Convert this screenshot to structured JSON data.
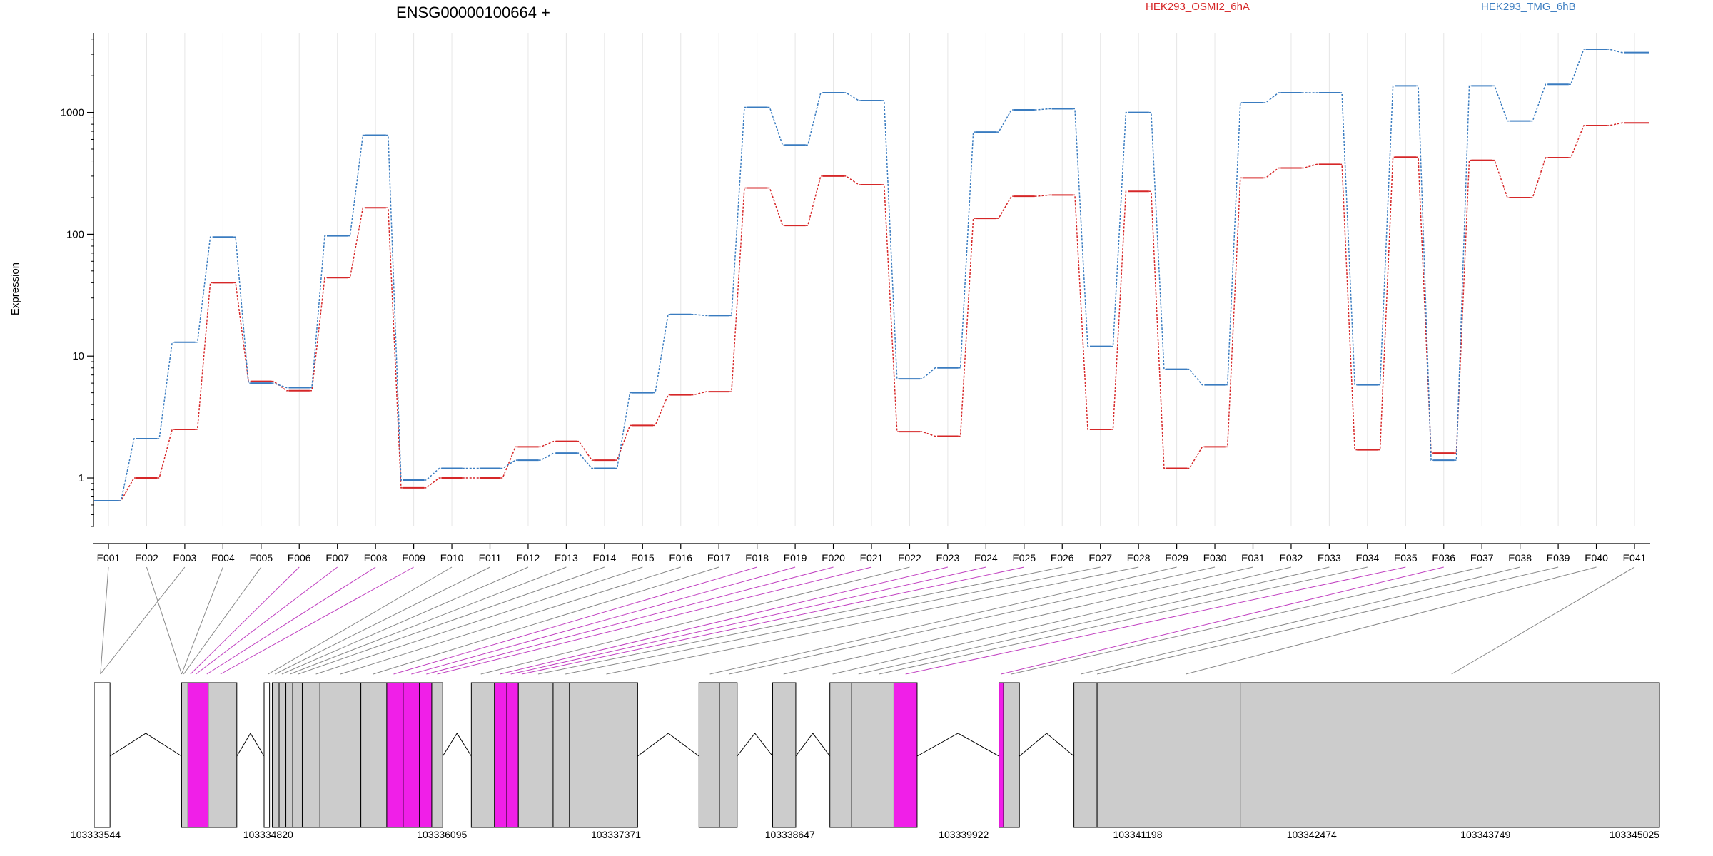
{
  "chart_data": {
    "type": "line",
    "title": "ENSG00000100664 +",
    "ylabel": "Expression",
    "yscale": "log",
    "ylim": [
      0.4,
      4500
    ],
    "yticks": [
      1,
      10,
      100,
      1000
    ],
    "ytick_labels": [
      "1",
      "10",
      "100",
      "1000"
    ],
    "grid": "vertical",
    "legend_position": "top-right",
    "colors": {
      "osmi": "#d62728",
      "tmg": "#3a7cc0",
      "highlight": "#f01fe8",
      "exon": "#cccccc"
    },
    "categories": [
      "E001",
      "E002",
      "E003",
      "E004",
      "E005",
      "E006",
      "E007",
      "E008",
      "E009",
      "E010",
      "E011",
      "E012",
      "E013",
      "E014",
      "E015",
      "E016",
      "E017",
      "E018",
      "E019",
      "E020",
      "E021",
      "E022",
      "E023",
      "E024",
      "E025",
      "E026",
      "E027",
      "E028",
      "E029",
      "E030",
      "E031",
      "E032",
      "E033",
      "E034",
      "E035",
      "E036",
      "E037",
      "E038",
      "E039",
      "E040",
      "E041"
    ],
    "series": [
      {
        "name": "HEK293_OSMI2_6hA",
        "color": "#d62728",
        "values": [
          0.65,
          1.0,
          2.5,
          40,
          6.2,
          5.2,
          44,
          165,
          0.83,
          1.0,
          1.0,
          1.8,
          2.0,
          1.4,
          2.7,
          4.8,
          5.1,
          240,
          118,
          300,
          255,
          2.4,
          2.2,
          135,
          205,
          210,
          2.5,
          225,
          1.2,
          1.8,
          290,
          350,
          375,
          1.7,
          430,
          1.6,
          405,
          200,
          425,
          780,
          820
        ]
      },
      {
        "name": "HEK293_TMG_6hB",
        "color": "#3a7cc0",
        "values": [
          0.65,
          2.1,
          13,
          95,
          6.0,
          5.5,
          97,
          650,
          0.96,
          1.2,
          1.2,
          1.4,
          1.6,
          1.2,
          5.0,
          22,
          21.5,
          1100,
          540,
          1450,
          1250,
          6.5,
          8.0,
          690,
          1050,
          1070,
          12,
          1000,
          7.8,
          5.8,
          1200,
          1450,
          1450,
          5.8,
          1650,
          1.4,
          1650,
          850,
          1700,
          3300,
          3100
        ]
      }
    ],
    "gene_track": {
      "coordinate_labels": [
        "103333544",
        "103334820",
        "103336095",
        "103337371",
        "103338647",
        "103339922",
        "103341198",
        "103342474",
        "103343749",
        "103345025"
      ],
      "exons": [
        {
          "start": 103333544,
          "end": 103333660,
          "highlight": false,
          "white": true
        },
        {
          "start": 103334185,
          "end": 103334232,
          "highlight": false
        },
        {
          "start": 103334232,
          "end": 103334380,
          "highlight": true
        },
        {
          "start": 103334380,
          "end": 103334590,
          "highlight": false
        },
        {
          "start": 103334790,
          "end": 103334830,
          "highlight": false,
          "white": true
        },
        {
          "start": 103334850,
          "end": 103334900,
          "highlight": false
        },
        {
          "start": 103334900,
          "end": 103334950,
          "highlight": false
        },
        {
          "start": 103334950,
          "end": 103335000,
          "highlight": false
        },
        {
          "start": 103335000,
          "end": 103335070,
          "highlight": false
        },
        {
          "start": 103335070,
          "end": 103335200,
          "highlight": false
        },
        {
          "start": 103335200,
          "end": 103335500,
          "highlight": false
        },
        {
          "start": 103335500,
          "end": 103335690,
          "highlight": false
        },
        {
          "start": 103335690,
          "end": 103335810,
          "highlight": true
        },
        {
          "start": 103335810,
          "end": 103335930,
          "highlight": true
        },
        {
          "start": 103335930,
          "end": 103336020,
          "highlight": true
        },
        {
          "start": 103336020,
          "end": 103336100,
          "highlight": false
        },
        {
          "start": 103336310,
          "end": 103336480,
          "highlight": false
        },
        {
          "start": 103336480,
          "end": 103336570,
          "highlight": true
        },
        {
          "start": 103336570,
          "end": 103336655,
          "highlight": true
        },
        {
          "start": 103336655,
          "end": 103336910,
          "highlight": false
        },
        {
          "start": 103336910,
          "end": 103337030,
          "highlight": false
        },
        {
          "start": 103337030,
          "end": 103337530,
          "highlight": false
        },
        {
          "start": 103337980,
          "end": 103338130,
          "highlight": false
        },
        {
          "start": 103338130,
          "end": 103338260,
          "highlight": false
        },
        {
          "start": 103338520,
          "end": 103338690,
          "highlight": false
        },
        {
          "start": 103338940,
          "end": 103339100,
          "highlight": false
        },
        {
          "start": 103339100,
          "end": 103339410,
          "highlight": false
        },
        {
          "start": 103339410,
          "end": 103339580,
          "highlight": true
        },
        {
          "start": 103340180,
          "end": 103340215,
          "highlight": true
        },
        {
          "start": 103340215,
          "end": 103340330,
          "highlight": false
        },
        {
          "start": 103340730,
          "end": 103340900,
          "highlight": false
        },
        {
          "start": 103340900,
          "end": 103341950,
          "highlight": false
        },
        {
          "start": 103341950,
          "end": 103345025,
          "highlight": false
        }
      ],
      "connector_pairs": [
        [
          103333590,
          false
        ],
        [
          103334185,
          false
        ],
        [
          103334200,
          false
        ],
        [
          103334250,
          true
        ],
        [
          103334290,
          true
        ],
        [
          103334370,
          true
        ],
        [
          103334470,
          true
        ],
        [
          103334820,
          false
        ],
        [
          103334870,
          false
        ],
        [
          103334920,
          false
        ],
        [
          103334980,
          false
        ],
        [
          103335040,
          false
        ],
        [
          103335170,
          false
        ],
        [
          103335350,
          false
        ],
        [
          103335590,
          false
        ],
        [
          103335740,
          true
        ],
        [
          103335870,
          true
        ],
        [
          103335980,
          true
        ],
        [
          103336060,
          true
        ],
        [
          103336380,
          false
        ],
        [
          103336520,
          true
        ],
        [
          103336600,
          true
        ],
        [
          103336680,
          true
        ],
        [
          103336800,
          false
        ],
        [
          103337000,
          false
        ],
        [
          103337300,
          false
        ],
        [
          103338060,
          false
        ],
        [
          103338200,
          false
        ],
        [
          103338600,
          false
        ],
        [
          103338960,
          false
        ],
        [
          103339150,
          false
        ],
        [
          103339300,
          false
        ],
        [
          103339495,
          true
        ],
        [
          103340195,
          true
        ],
        [
          103340270,
          false
        ],
        [
          103340780,
          false
        ],
        [
          103340900,
          false
        ],
        [
          103341550,
          false
        ],
        [
          103343500,
          false
        ]
      ]
    }
  }
}
